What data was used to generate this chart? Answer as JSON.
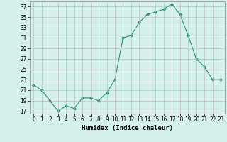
{
  "x": [
    0,
    1,
    2,
    3,
    4,
    5,
    6,
    7,
    8,
    9,
    10,
    11,
    12,
    13,
    14,
    15,
    16,
    17,
    18,
    19,
    20,
    21,
    22,
    23
  ],
  "y": [
    22,
    21,
    19,
    17,
    18,
    17.5,
    19.5,
    19.5,
    19,
    20.5,
    23,
    31,
    31.5,
    34,
    35.5,
    36,
    36.5,
    37.5,
    35.5,
    31.5,
    27,
    25.5,
    23,
    23
  ],
  "line_color": "#2e8b74",
  "marker": "D",
  "marker_size": 2,
  "bg_color": "#d4f0eb",
  "grid_color": "#b8b8b8",
  "xlabel": "Humidex (Indice chaleur)",
  "xlim": [
    -0.5,
    23.5
  ],
  "ylim": [
    16.5,
    38
  ],
  "yticks": [
    17,
    19,
    21,
    23,
    25,
    27,
    29,
    31,
    33,
    35,
    37
  ],
  "xticks": [
    0,
    1,
    2,
    3,
    4,
    5,
    6,
    7,
    8,
    9,
    10,
    11,
    12,
    13,
    14,
    15,
    16,
    17,
    18,
    19,
    20,
    21,
    22,
    23
  ],
  "tick_fontsize": 5.5,
  "xlabel_fontsize": 6.5
}
